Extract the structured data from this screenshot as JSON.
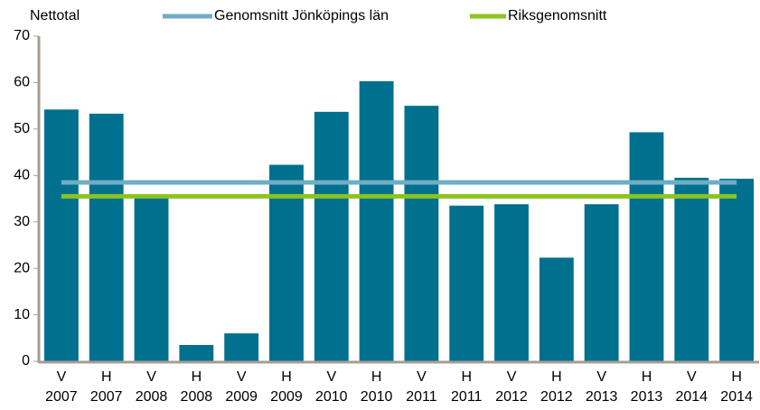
{
  "chart_data": {
    "type": "bar",
    "ylabel": "Nettotal",
    "categories": [
      "V 2007",
      "H 2007",
      "V 2008",
      "H 2008",
      "V 2009",
      "H 2009",
      "V 2010",
      "H 2010",
      "V 2011",
      "H 2011",
      "V 2012",
      "H 2012",
      "V 2013",
      "H 2013",
      "V 2014",
      "H 2014"
    ],
    "values": [
      54.2,
      53.3,
      35.5,
      3.5,
      6,
      42.3,
      53.7,
      60.3,
      55,
      33.5,
      33.8,
      22.3,
      33.8,
      49.3,
      39.5,
      39.3
    ],
    "color": "#00708f",
    "series": [
      {
        "name": "Genomsnitt Jönköpings län",
        "color": "#6faec4",
        "values": [
          38.5,
          38.5,
          38.5,
          38.5,
          38.5,
          38.5,
          38.5,
          38.5,
          38.5,
          38.5,
          38.5,
          38.5,
          38.5,
          38.5,
          38.5,
          38.5
        ]
      },
      {
        "name": "Riksgenomsnitt",
        "color": "#8cc31e",
        "values": [
          35.5,
          35.5,
          35.5,
          35.5,
          35.5,
          35.5,
          35.5,
          35.5,
          35.5,
          35.5,
          35.5,
          35.5,
          35.5,
          35.5,
          35.5,
          35.5
        ]
      }
    ],
    "ylim": [
      0,
      70
    ],
    "yticks": [
      0,
      10,
      20,
      30,
      40,
      50,
      60,
      70
    ],
    "grid": false
  }
}
